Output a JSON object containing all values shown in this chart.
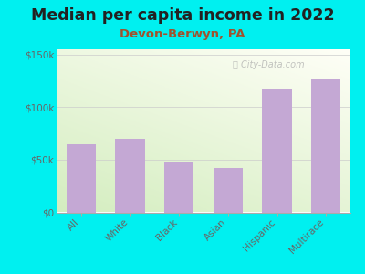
{
  "title": "Median per capita income in 2022",
  "subtitle": "Devon-Berwyn, PA",
  "categories": [
    "All",
    "White",
    "Black",
    "Asian",
    "Hispanic",
    "Multirace"
  ],
  "values": [
    65000,
    70000,
    48000,
    42000,
    118000,
    127000
  ],
  "bar_color": "#c4a8d4",
  "background_outer": "#00f0f0",
  "title_color": "#222222",
  "subtitle_color": "#a0522d",
  "tick_color": "#666666",
  "ytick_labels": [
    "$0",
    "$50k",
    "$100k",
    "$150k"
  ],
  "ytick_values": [
    0,
    50000,
    100000,
    150000
  ],
  "ylim": [
    0,
    155000
  ],
  "watermark": "City-Data.com",
  "title_fontsize": 12.5,
  "subtitle_fontsize": 9.5,
  "tick_fontsize": 7.5
}
